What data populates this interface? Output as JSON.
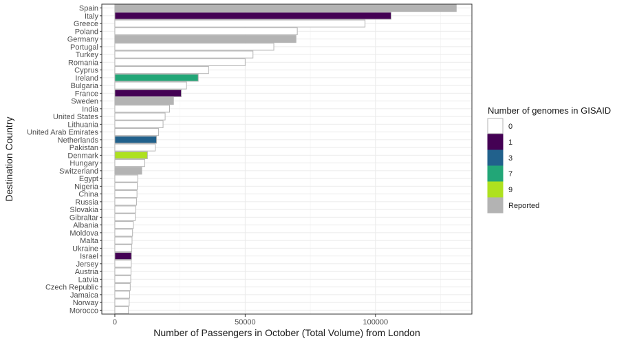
{
  "chart_data": {
    "type": "bar",
    "orientation": "horizontal",
    "xlabel": "Number of Passengers in October (Total Volume) from London",
    "ylabel": "Destination Country",
    "xlim": [
      -5000,
      137000
    ],
    "xticks": [
      0,
      50000,
      100000
    ],
    "xtick_labels": [
      "0",
      "50000",
      "100000"
    ],
    "grid": true,
    "legend": {
      "title": "Number of genomes in GISAID",
      "placement": "right",
      "entries": [
        {
          "label": "0",
          "color": "#ffffff"
        },
        {
          "label": "1",
          "color": "#440154"
        },
        {
          "label": "3",
          "color": "#21618c"
        },
        {
          "label": "7",
          "color": "#22a677"
        },
        {
          "label": "9",
          "color": "#aee11f"
        },
        {
          "label": "Reported",
          "color": "#b3b3b3"
        }
      ]
    },
    "categories": [
      "Spain",
      "Italy",
      "Greece",
      "Poland",
      "Germany",
      "Portugal",
      "Turkey",
      "Romania",
      "Cyprus",
      "Ireland",
      "Bulgaria",
      "France",
      "Sweden",
      "India",
      "United States",
      "Lithuania",
      "United Arab Emirates",
      "Netherlands",
      "Pakistan",
      "Denmark",
      "Hungary",
      "Switzerland",
      "Egypt",
      "Nigeria",
      "China",
      "Russia",
      "Slovakia",
      "Gibraltar",
      "Albania",
      "Moldova",
      "Malta",
      "Ukraine",
      "Israel",
      "Jersey",
      "Austria",
      "Latvia",
      "Czech Republic",
      "Jamaica",
      "Norway",
      "Morocco"
    ],
    "values": [
      131000,
      106000,
      96000,
      70000,
      69500,
      61000,
      53000,
      50000,
      36000,
      32000,
      27500,
      25500,
      22500,
      21000,
      19300,
      18500,
      16800,
      16000,
      15500,
      12500,
      11500,
      10300,
      8800,
      8600,
      8500,
      8300,
      8000,
      7800,
      7100,
      6800,
      6600,
      6500,
      6400,
      6300,
      6200,
      6100,
      5900,
      5700,
      5500,
      5200
    ],
    "genome_group": [
      "Reported",
      "1",
      "0",
      "0",
      "Reported",
      "0",
      "0",
      "0",
      "0",
      "7",
      "0",
      "1",
      "Reported",
      "0",
      "0",
      "0",
      "0",
      "3",
      "0",
      "9",
      "0",
      "Reported",
      "0",
      "0",
      "0",
      "0",
      "0",
      "0",
      "0",
      "0",
      "0",
      "0",
      "1",
      "0",
      "0",
      "0",
      "0",
      "0",
      "0",
      "0"
    ]
  }
}
